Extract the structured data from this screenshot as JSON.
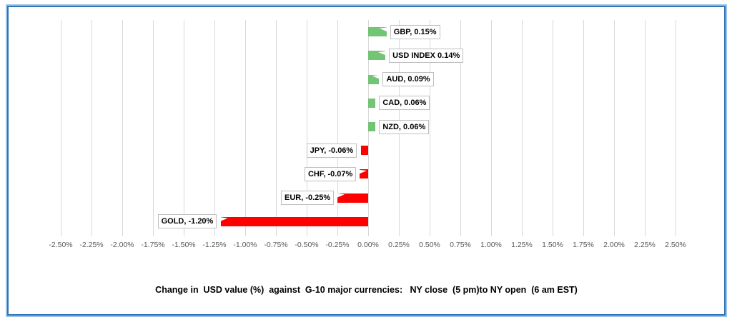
{
  "frame": {
    "border_color": "#2E75B6",
    "outer_glow_color": "#9DC3E6",
    "background": "#FFFFFF"
  },
  "chart_data": {
    "type": "bar",
    "orientation": "horizontal",
    "title": "Change in  USD value (%)  against  G-10 major currencies:   NY close  (5 pm)to NY open  (6 am EST)",
    "categories": [
      "GBP",
      "USD INDEX",
      "AUD",
      "CAD",
      "NZD",
      "JPY",
      "CHF",
      "EUR",
      "GOLD"
    ],
    "values": [
      0.15,
      0.14,
      0.09,
      0.06,
      0.06,
      -0.06,
      -0.07,
      -0.25,
      -1.2
    ],
    "data_labels": [
      "GBP, 0.15%",
      "USD INDEX 0.14%",
      "AUD, 0.09%",
      "CAD, 0.06%",
      "NZD, 0.06%",
      "JPY, -0.06%",
      "CHF, -0.07%",
      "EUR, -0.25%",
      "GOLD, -1.20%"
    ],
    "callout_flags": [
      true,
      true,
      true,
      false,
      false,
      false,
      true,
      true,
      true
    ],
    "xlim": [
      -2.5,
      2.5
    ],
    "x_tick_step": 0.25,
    "x_tick_labels": [
      "-2.50%",
      "-2.25%",
      "-2.00%",
      "-1.75%",
      "-1.50%",
      "-1.25%",
      "-1.00%",
      "-0.75%",
      "-0.50%",
      "-0.25%",
      "0.00%",
      "0.25%",
      "0.50%",
      "0.75%",
      "1.00%",
      "1.25%",
      "1.50%",
      "1.75%",
      "2.00%",
      "2.25%",
      "2.50%"
    ],
    "grid": true,
    "legend": "none",
    "colors": {
      "positive": "#74C476",
      "negative": "#FF0000",
      "gridline": "#D9D9D9",
      "axis_text": "#595959",
      "label_border": "#BFBFBF",
      "label_bg": "#FFFFFF"
    }
  }
}
